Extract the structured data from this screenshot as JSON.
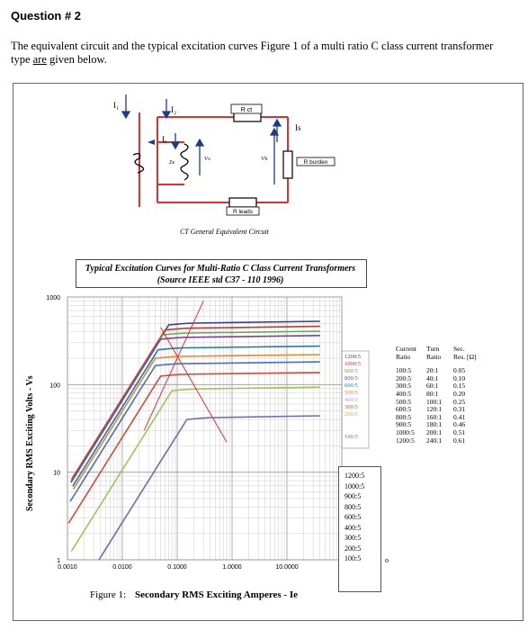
{
  "question": {
    "title": "Question # 2",
    "body_pre": "The equivalent circuit and the typical excitation curves Figure 1 of a multi ratio C class current transformer type ",
    "body_underlined": "are",
    "body_post": " given below."
  },
  "circuit": {
    "labels": {
      "i1": "I₁",
      "i2": "I₂",
      "ie": "Iₑ",
      "is": "Is",
      "ze": "Ze",
      "vs": "Vs",
      "vb": "Vb",
      "rct": "R ct",
      "rburden": "R burden",
      "rleads": "R leads"
    },
    "caption": "CT General Equivalent Circuit",
    "colors": {
      "wire": "#e03030",
      "component": "#000000"
    }
  },
  "chart_header": {
    "line1": "Typical Excitation Curves for Multi-Ratio C Class Current Transformers",
    "line2": "(Source IEEE std C37 - 110 1996)"
  },
  "figure_caption": {
    "prefix": "Figure 1:",
    "title": "Secondary RMS Exciting Amperes - Ie"
  },
  "chart_data": {
    "type": "line",
    "xscale": "log",
    "yscale": "log",
    "xlim": [
      0.001,
      100
    ],
    "ylim": [
      1,
      1000
    ],
    "xlabel": "Secondary RMS Exciting Amperes - Ie",
    "ylabel": "Secondary RMS Exciting Volts - Vs",
    "x_ticks": [
      "0.0010",
      "0.0100",
      "0.1000",
      "1.0000",
      "10.0000"
    ],
    "y_ticks": [
      "1000",
      "100",
      "10",
      "1"
    ],
    "grid": true,
    "series": [
      {
        "name": "1200:5",
        "color": "#3a3a9a",
        "knee_x": 0.07,
        "sat_v": 480
      },
      {
        "name": "1000:5",
        "color": "#c0392b",
        "knee_x": 0.06,
        "sat_v": 420
      },
      {
        "name": "900:5",
        "color": "#6aa84f",
        "knee_x": 0.055,
        "sat_v": 370
      },
      {
        "name": "800:5",
        "color": "#7b3fa0",
        "knee_x": 0.05,
        "sat_v": 330
      },
      {
        "name": "600:5",
        "color": "#1f7aa8",
        "knee_x": 0.045,
        "sat_v": 250
      },
      {
        "name": "500:5",
        "color": "#e08a2e",
        "knee_x": 0.04,
        "sat_v": 200
      },
      {
        "name": "400:5",
        "color": "#4a6ec5",
        "knee_x": 0.04,
        "sat_v": 165
      },
      {
        "name": "300:5",
        "color": "#d24a3a",
        "knee_x": 0.05,
        "sat_v": 125
      },
      {
        "name": "200:5",
        "color": "#9dc654",
        "knee_x": 0.08,
        "sat_v": 85
      },
      {
        "name": "100:5",
        "color": "#8064b0",
        "knee_x": 0.15,
        "sat_v": 40
      }
    ],
    "inline_labels": [
      "1200:5",
      "1000:5",
      "900:5",
      "800:5",
      "600:5",
      "500:5",
      "400:5",
      "300:5",
      "200:5",
      "100:5"
    ],
    "legend_box": [
      "1200:5",
      "1000:5",
      "900:5",
      "800:5",
      "600:5",
      "400:5",
      "300:5",
      "200:5",
      "100:5"
    ],
    "stray_label": "o",
    "table": {
      "headers": [
        [
          "Current",
          "Turn",
          "Sec."
        ],
        [
          "Ratio",
          "Ratio",
          "Res. [Ω]"
        ]
      ],
      "rows": [
        [
          "100:5",
          "20:1",
          "0.05"
        ],
        [
          "200:5",
          "40:1",
          "0.10"
        ],
        [
          "300:5",
          "60:1",
          "0.15"
        ],
        [
          "400:5",
          "80:1",
          "0.20"
        ],
        [
          "500:5",
          "100:1",
          "0.25"
        ],
        [
          "600:5",
          "120:1",
          "0.31"
        ],
        [
          "800:5",
          "160:1",
          "0.41"
        ],
        [
          "900:5",
          "180:1",
          "0.46"
        ],
        [
          "1000:5",
          "200:1",
          "0.51"
        ],
        [
          "1200:5",
          "240:1",
          "0.61"
        ]
      ]
    }
  }
}
